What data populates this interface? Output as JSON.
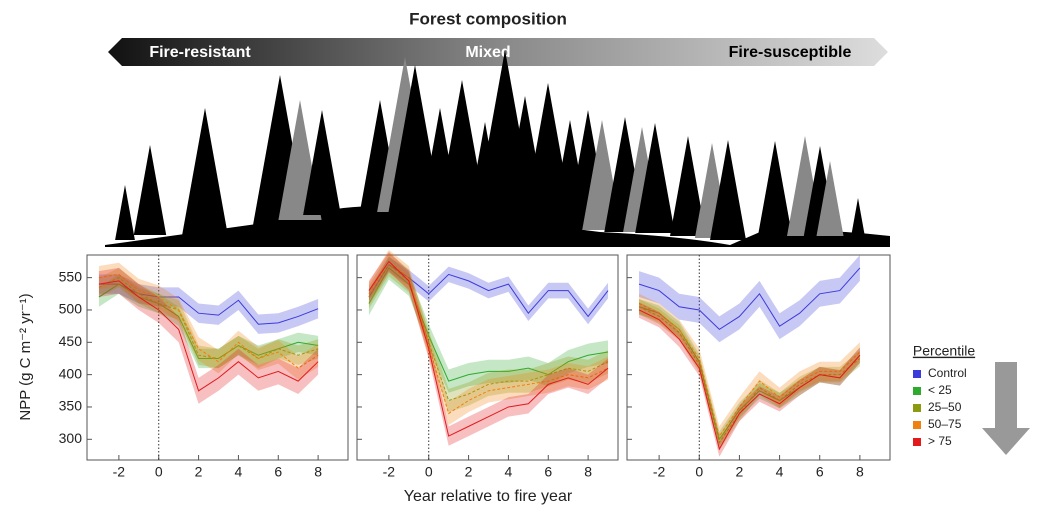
{
  "header": {
    "title": "Forest composition",
    "left": "Fire-resistant",
    "middle": "Mixed",
    "right": "Fire-susceptible"
  },
  "legend_title": "Percentile",
  "chart_data": [
    {
      "type": "line",
      "ylabel": "NPP (g C m⁻² yr⁻¹)",
      "xlim": [
        -3.6,
        9.5
      ],
      "ylim": [
        268,
        585
      ],
      "xticks": [
        -2,
        0,
        2,
        4,
        6,
        8
      ],
      "yticks": [
        300,
        350,
        400,
        450,
        500,
        550
      ],
      "vline": 0,
      "x": [
        -3,
        -2,
        -1,
        0,
        1,
        2,
        3,
        4,
        5,
        6,
        7,
        8
      ],
      "series": [
        {
          "name": "Control",
          "color": "#3b3bdc",
          "error": 15,
          "values": [
            540,
            540,
            525,
            520,
            520,
            495,
            492,
            515,
            478,
            480,
            490,
            502
          ]
        },
        {
          "name": "< 25",
          "color": "#2eaa2e",
          "error": 15,
          "values": [
            520,
            540,
            520,
            510,
            490,
            425,
            425,
            445,
            430,
            440,
            450,
            445
          ]
        },
        {
          "name": "25–50",
          "color": "#8b9a0f",
          "error": 15,
          "values": [
            535,
            550,
            525,
            510,
            500,
            430,
            425,
            445,
            425,
            440,
            430,
            440
          ]
        },
        {
          "name": "50–75",
          "color": "#f08010",
          "error": 18,
          "values": [
            550,
            555,
            530,
            520,
            500,
            440,
            420,
            450,
            425,
            435,
            410,
            430
          ]
        },
        {
          "name": "> 75",
          "color": "#e31a1c",
          "error": 20,
          "values": [
            540,
            545,
            520,
            500,
            470,
            375,
            395,
            420,
            395,
            405,
            390,
            420
          ]
        }
      ]
    },
    {
      "type": "line",
      "xlabel": "Year relative to fire year",
      "xlim": [
        -3.6,
        9.5
      ],
      "ylim": [
        268,
        585
      ],
      "xticks": [
        -2,
        0,
        2,
        4,
        6,
        8
      ],
      "vline": 0,
      "x": [
        -3,
        -2,
        -1,
        0,
        1,
        2,
        3,
        4,
        5,
        6,
        7,
        8,
        9
      ],
      "series": [
        {
          "name": "Control",
          "color": "#3b3bdc",
          "error": 12,
          "values": [
            520,
            570,
            550,
            525,
            555,
            545,
            530,
            540,
            495,
            530,
            530,
            490,
            530
          ]
        },
        {
          "name": "< 25",
          "color": "#2eaa2e",
          "error": 18,
          "values": [
            510,
            565,
            540,
            460,
            390,
            400,
            405,
            405,
            410,
            400,
            420,
            430,
            435
          ]
        },
        {
          "name": "25–50",
          "color": "#8b9a0f",
          "error": 18,
          "values": [
            520,
            570,
            545,
            450,
            360,
            370,
            385,
            390,
            390,
            400,
            410,
            405,
            420
          ]
        },
        {
          "name": "50–75",
          "color": "#f08010",
          "error": 18,
          "values": [
            525,
            575,
            550,
            445,
            340,
            360,
            375,
            380,
            385,
            390,
            400,
            395,
            410
          ]
        },
        {
          "name": "> 75",
          "color": "#e31a1c",
          "error": 15,
          "values": [
            530,
            575,
            545,
            440,
            305,
            320,
            335,
            350,
            355,
            385,
            395,
            385,
            410
          ]
        }
      ]
    },
    {
      "type": "line",
      "xlim": [
        -3.6,
        9.5
      ],
      "ylim": [
        268,
        585
      ],
      "xticks": [
        -2,
        0,
        2,
        4,
        6,
        8
      ],
      "vline": 0,
      "x": [
        -3,
        -2,
        -1,
        0,
        1,
        2,
        3,
        4,
        5,
        6,
        7,
        8
      ],
      "series": [
        {
          "name": "Control",
          "color": "#3b3bdc",
          "error": 20,
          "values": [
            540,
            530,
            505,
            500,
            470,
            490,
            525,
            475,
            495,
            525,
            530,
            565
          ]
        },
        {
          "name": "< 25",
          "color": "#2eaa2e",
          "error": 12,
          "values": [
            505,
            495,
            470,
            420,
            300,
            345,
            375,
            360,
            380,
            400,
            395,
            430
          ]
        },
        {
          "name": "25–50",
          "color": "#8b9a0f",
          "error": 12,
          "values": [
            505,
            490,
            465,
            415,
            295,
            340,
            380,
            360,
            385,
            400,
            400,
            425
          ]
        },
        {
          "name": "50–75",
          "color": "#f08010",
          "error": 15,
          "values": [
            510,
            495,
            470,
            425,
            305,
            350,
            390,
            365,
            390,
            405,
            405,
            435
          ]
        },
        {
          "name": "> 75",
          "color": "#e31a1c",
          "error": 12,
          "values": [
            500,
            485,
            455,
            410,
            285,
            340,
            370,
            355,
            380,
            400,
            395,
            430
          ]
        }
      ]
    }
  ]
}
